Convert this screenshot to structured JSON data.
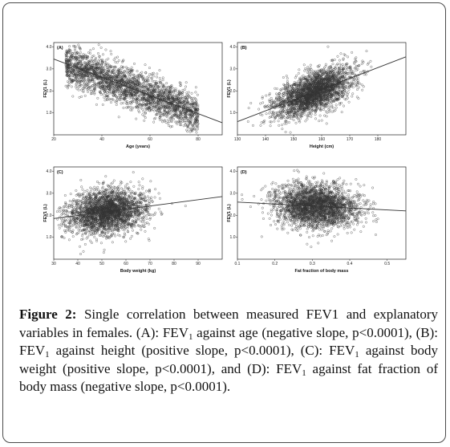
{
  "caption": {
    "figure_label": "Figure 2:",
    "intro": "Single correlation between measured FEV1 and explanatory variables in females. (A): FEV",
    "a_text": " against age (negative slope, p<0.0001), (B): FEV",
    "b_text": " against height (positive slope, p<0.0001), (C): FEV",
    "c_text": " against body weight (positive slope, p<0.0001), and (D): FEV",
    "d_text": " against fat fraction of body mass (negative slope, p<0.0001).",
    "subscript": "1"
  },
  "chart_data": [
    {
      "type": "scatter",
      "panel": "(A)",
      "xlabel": "Age (years)",
      "ylabel": "FEV1 (L)",
      "xlim": [
        20,
        90
      ],
      "ylim": [
        0,
        4.2
      ],
      "xticks": [
        "20",
        "40",
        "60",
        "80"
      ],
      "yticks": [
        "1.0",
        "2.0",
        "3.0",
        "4.0"
      ],
      "n_points": 2600,
      "cloud": {
        "x_min": 25,
        "x_max": 80,
        "x_dist": "uniform",
        "y_sd": 0.45
      },
      "fit_line": {
        "x": [
          20,
          90
        ],
        "y": [
          3.45,
          0.55
        ]
      },
      "trend": "negative"
    },
    {
      "type": "scatter",
      "panel": "(B)",
      "xlabel": "Height (cm)",
      "ylabel": "FEV1 (L)",
      "xlim": [
        130,
        190
      ],
      "ylim": [
        0,
        4.2
      ],
      "xticks": [
        "130",
        "140",
        "150",
        "160",
        "170",
        "180"
      ],
      "yticks": [
        "1.0",
        "2.0",
        "3.0",
        "4.0"
      ],
      "n_points": 2600,
      "cloud": {
        "x_mean": 157,
        "x_sd": 7,
        "y_sd": 0.45
      },
      "fit_line": {
        "x": [
          130,
          190
        ],
        "y": [
          0.6,
          3.55
        ]
      },
      "trend": "positive"
    },
    {
      "type": "scatter",
      "panel": "(C)",
      "xlabel": "Body weight (kg)",
      "ylabel": "FEV1 (L)",
      "xlim": [
        30,
        100
      ],
      "ylim": [
        0,
        4.2
      ],
      "xticks": [
        "30",
        "40",
        "50",
        "60",
        "70",
        "80",
        "90"
      ],
      "yticks": [
        "1.0",
        "2.0",
        "3.0",
        "4.0"
      ],
      "n_points": 2600,
      "cloud": {
        "x_mean": 52,
        "x_sd": 8,
        "y_sd": 0.5
      },
      "fit_line": {
        "x": [
          30,
          100
        ],
        "y": [
          1.85,
          2.85
        ]
      },
      "trend": "positive"
    },
    {
      "type": "scatter",
      "panel": "(D)",
      "xlabel": "Fat fraction of body mass",
      "ylabel": "FEV1 (L)",
      "xlim": [
        0.1,
        0.55
      ],
      "ylim": [
        0,
        4.2
      ],
      "xticks": [
        "0.1",
        "0.2",
        "0.3",
        "0.4",
        "0.5"
      ],
      "yticks": [
        "1.0",
        "2.0",
        "3.0",
        "4.0"
      ],
      "n_points": 2600,
      "cloud": {
        "x_mean": 0.31,
        "x_sd": 0.055,
        "y_sd": 0.5
      },
      "fit_line": {
        "x": [
          0.1,
          0.55
        ],
        "y": [
          2.6,
          2.2
        ]
      },
      "trend": "negative"
    }
  ]
}
